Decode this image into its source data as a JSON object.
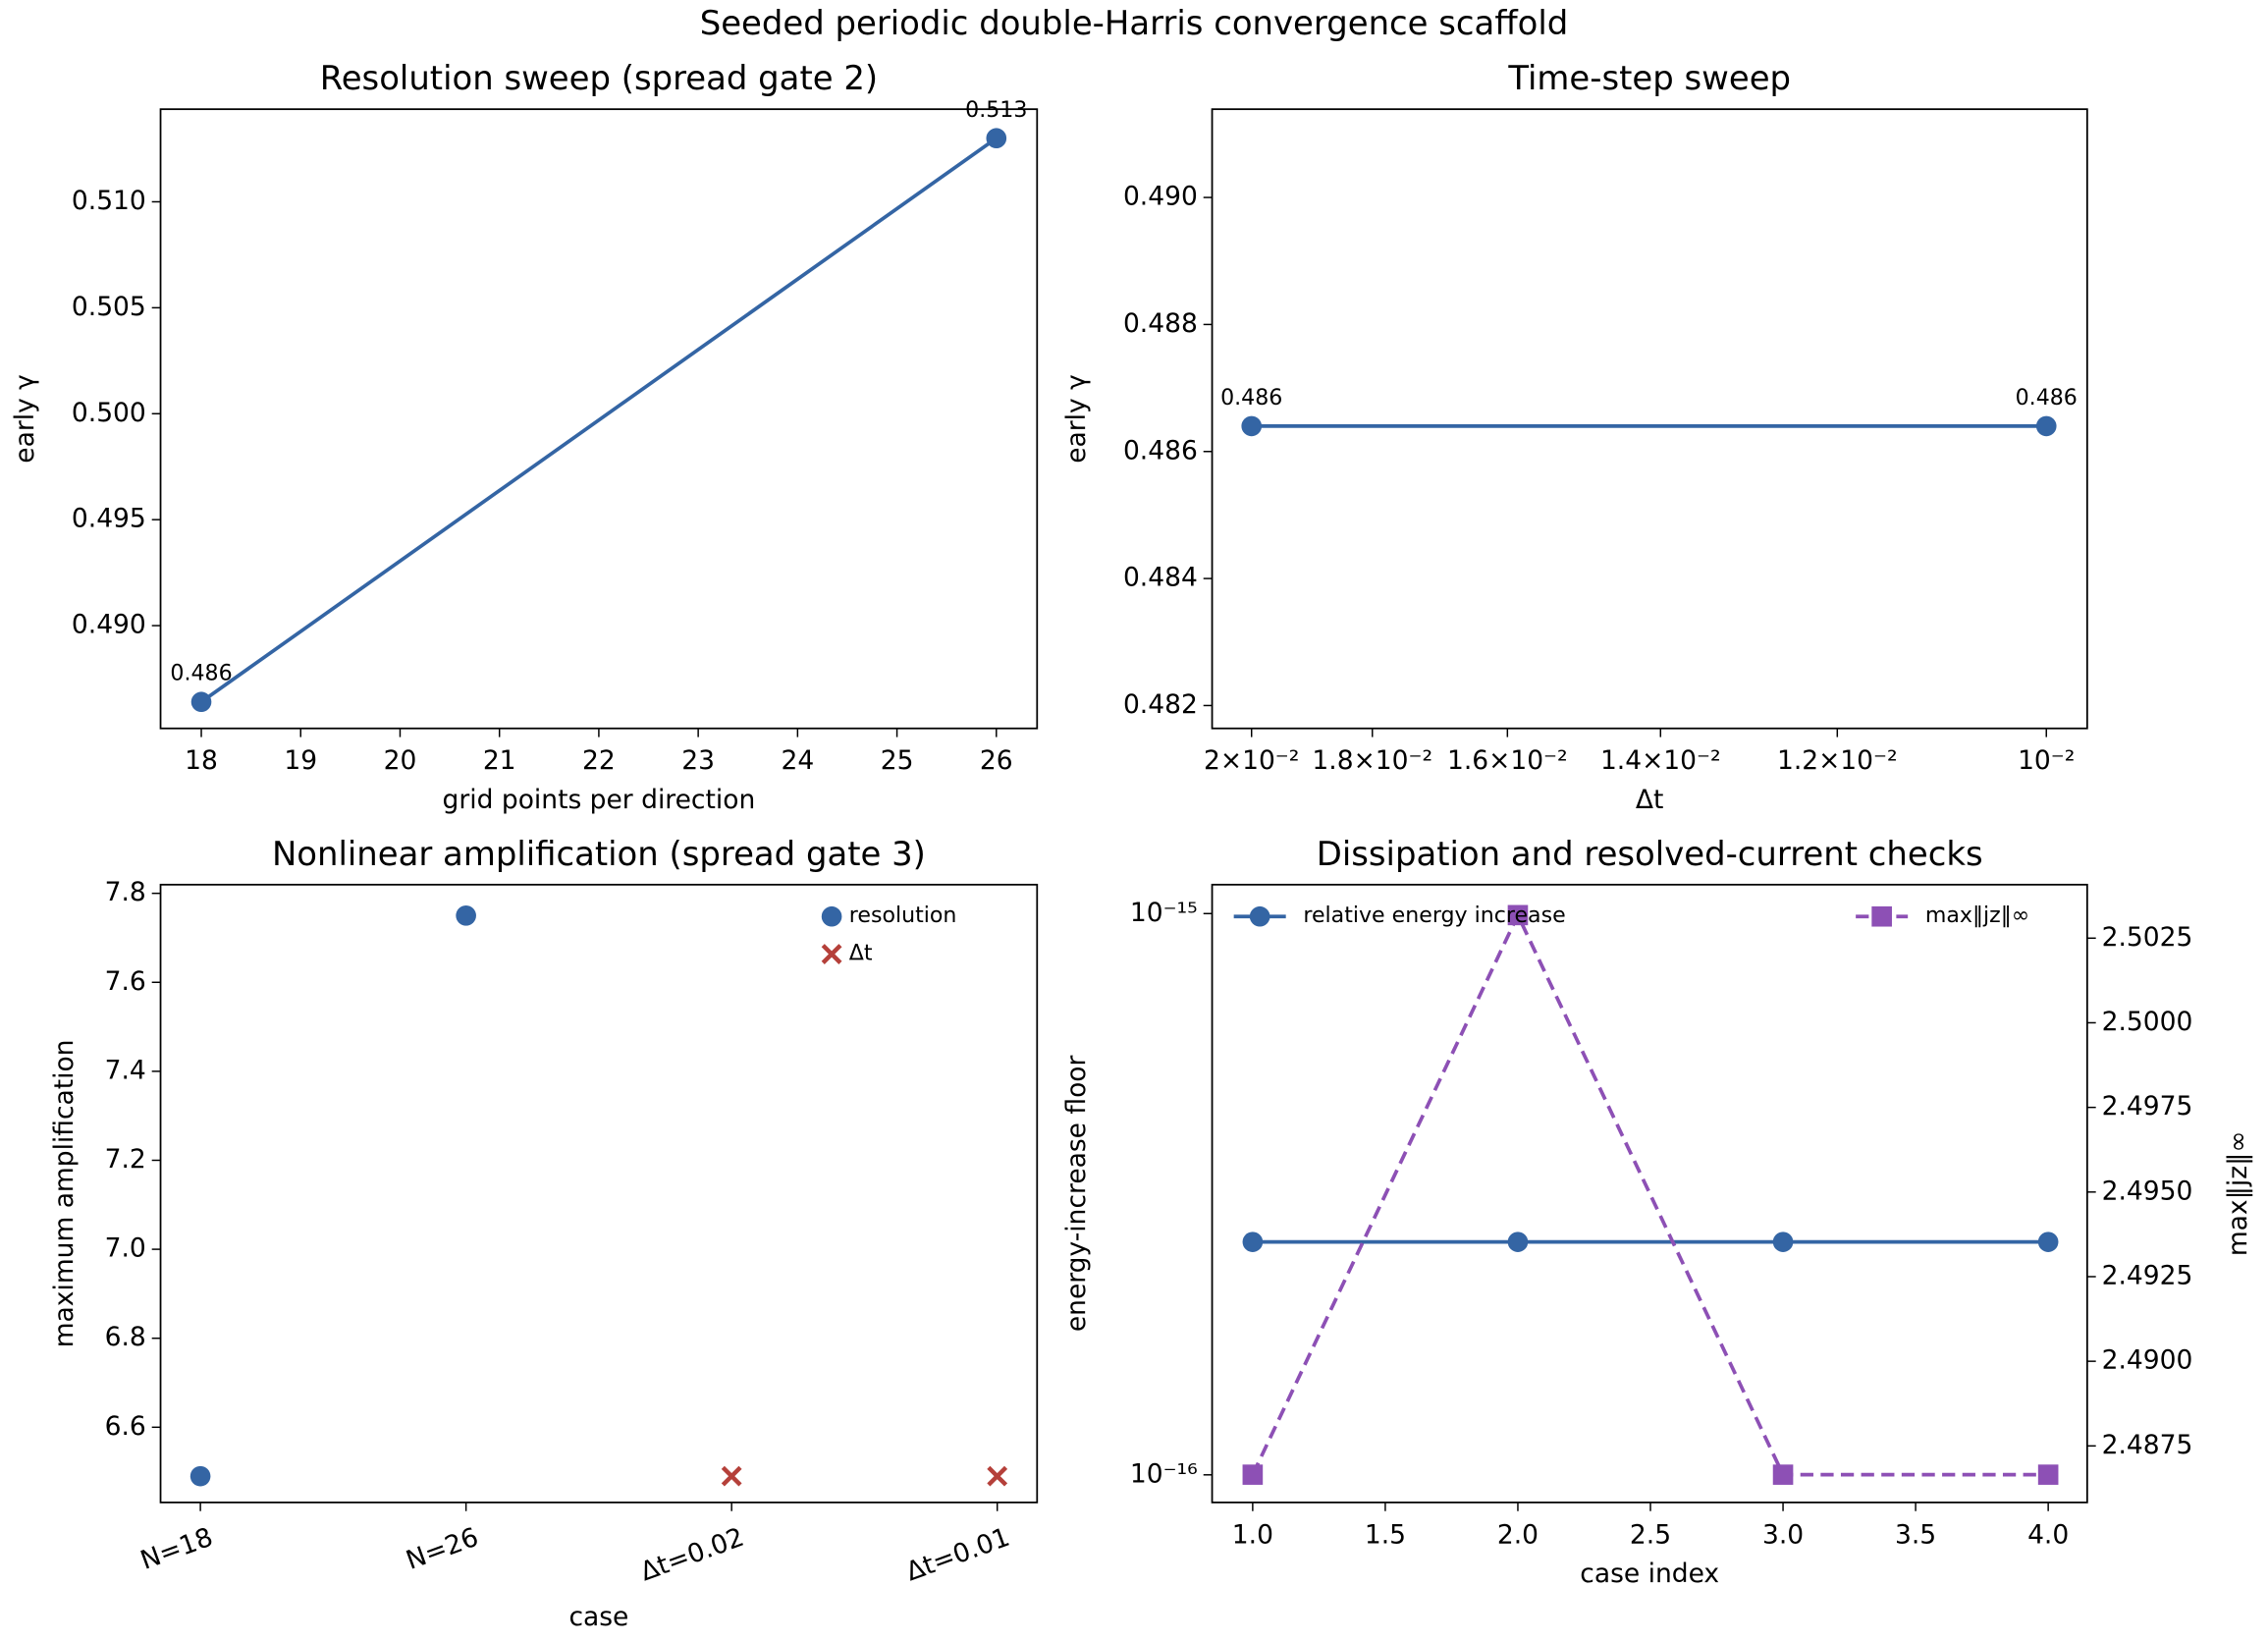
{
  "title": "Seeded periodic double-Harris convergence scaffold",
  "chart_data": [
    {
      "type": "line",
      "title": "Resolution sweep (spread gate 2)",
      "xlabel": "grid points per direction",
      "ylabel": "early γ",
      "x": [
        18,
        26
      ],
      "series": [
        {
          "color": "#3465a4",
          "marker": "o",
          "values": [
            0.4864,
            0.513
          ],
          "value_labels": [
            "0.486",
            "0.513"
          ]
        }
      ],
      "xlim": [
        17.59,
        26.41
      ],
      "xticks": [
        18,
        19,
        20,
        21,
        22,
        23,
        24,
        25,
        26
      ],
      "ylim": [
        0.48515,
        0.51437
      ],
      "yticks": [
        {
          "value": 0.49,
          "label": "0.490"
        },
        0.495,
        {
          "value": 0.5,
          "label": "0.500"
        },
        0.505,
        {
          "value": 0.51,
          "label": "0.510"
        }
      ]
    },
    {
      "type": "line",
      "title": "Time-step sweep",
      "xlabel": "Δt",
      "ylabel": "early γ",
      "x": [
        0.02,
        0.01
      ],
      "xlog": true,
      "series": [
        {
          "color": "#3465a4",
          "marker": "o",
          "values": [
            0.4864,
            0.4864
          ],
          "value_labels": [
            "0.486",
            "0.486"
          ]
        }
      ],
      "xlim": [
        0.0207,
        0.00965
      ],
      "xticks": [
        {
          "value": 0.02,
          "label": "2×10⁻²"
        },
        {
          "value": 0.018,
          "label": "1.8×10⁻²"
        },
        {
          "value": 0.016,
          "label": "1.6×10⁻²"
        },
        {
          "value": 0.014,
          "label": "1.4×10⁻²"
        },
        {
          "value": 0.012,
          "label": "1.2×10⁻²"
        },
        {
          "value": 0.01,
          "label": "10⁻²"
        }
      ],
      "ylim": [
        0.48164,
        0.49139
      ],
      "yticks": [
        0.482,
        0.484,
        0.486,
        0.488,
        {
          "value": 0.49,
          "label": "0.490"
        }
      ]
    },
    {
      "type": "scatter",
      "title": "Nonlinear amplification (spread gate 3)",
      "xlabel": "case",
      "ylabel": "maximum amplification",
      "categories": [
        "N=18",
        "N=26",
        "Δt=0.02",
        "Δt=0.01"
      ],
      "series": [
        {
          "name": "resolution",
          "color": "#3465a4",
          "marker": "o",
          "values": [
            6.49,
            7.75,
            null,
            null
          ]
        },
        {
          "name": "Δt",
          "color": "#b5403a",
          "marker": "x",
          "values": [
            null,
            null,
            6.49,
            6.49
          ]
        }
      ],
      "legend": "upper right",
      "xlim": [
        -0.15,
        3.15
      ],
      "ylim": [
        6.431,
        7.8195
      ],
      "yticks": [
        6.6,
        6.8,
        {
          "value": 7,
          "label": "7.0"
        },
        7.2,
        7.4,
        7.6,
        7.8
      ]
    },
    {
      "type": "line",
      "title": "Dissipation and resolved-current checks",
      "xlabel": "case index",
      "ylabel": "energy-increase floor",
      "y2label": "max‖jz‖∞",
      "x": [
        1,
        2,
        3,
        4
      ],
      "series": [
        {
          "name": "relative energy increase",
          "color": "#3465a4",
          "marker": "o",
          "legend": "upper left",
          "values": [
            2.6e-16,
            2.6e-16,
            2.6e-16,
            2.6e-16
          ]
        },
        {
          "name": "max‖jz‖∞",
          "color": "#8d50b5",
          "marker": "s",
          "dashed": true,
          "axis": "y2",
          "legend": "upper right",
          "values": [
            2.48665,
            2.50318,
            2.48665,
            2.48665
          ]
        }
      ],
      "xlim": [
        0.847,
        4.147
      ],
      "xticks": [
        {
          "value": 1,
          "label": "1.0"
        },
        1.5,
        {
          "value": 2,
          "label": "2.0"
        },
        2.5,
        {
          "value": 3,
          "label": "3.0"
        },
        3.5,
        {
          "value": 4,
          "label": "4.0"
        }
      ],
      "ylog": true,
      "ylim": [
        8.93e-17,
        1.126e-15
      ],
      "yticks": [
        {
          "value": 1e-16,
          "label": "10⁻¹⁶"
        },
        {
          "value": 1e-15,
          "label": "10⁻¹⁵"
        }
      ],
      "y2lim": [
        2.48583,
        2.50408
      ],
      "y2ticks": [
        2.4875,
        {
          "value": 2.49,
          "label": "2.4900"
        },
        2.4925,
        {
          "value": 2.495,
          "label": "2.4950"
        },
        2.4975,
        {
          "value": 2.5,
          "label": "2.5000"
        },
        2.5025
      ]
    }
  ]
}
